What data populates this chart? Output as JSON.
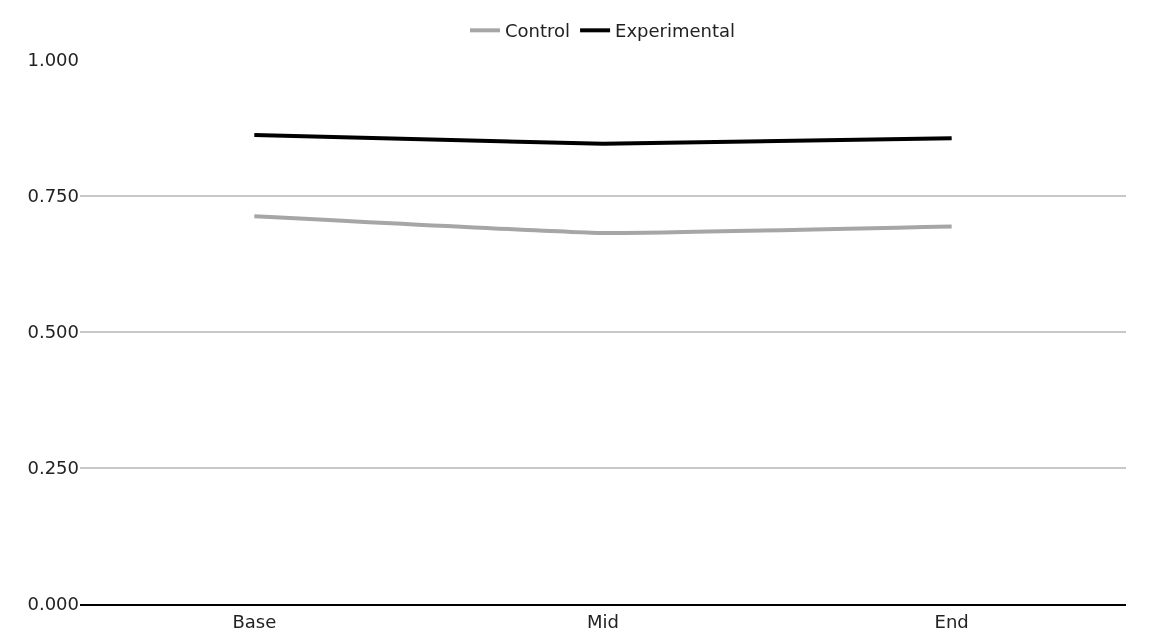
{
  "chart_data": {
    "type": "line",
    "categories": [
      "Base",
      "Mid",
      "End"
    ],
    "series": [
      {
        "name": "Control",
        "color": "#a6a6a6",
        "values": [
          0.713,
          0.682,
          0.694
        ]
      },
      {
        "name": "Experimental",
        "color": "#000000",
        "values": [
          0.862,
          0.846,
          0.856
        ]
      }
    ],
    "ylim": [
      0,
      1
    ],
    "yticks": [
      {
        "value": 0,
        "label": "0.000"
      },
      {
        "value": 0.25,
        "label": "0.250"
      },
      {
        "value": 0.5,
        "label": "0.500"
      },
      {
        "value": 0.75,
        "label": "0.750"
      },
      {
        "value": 1,
        "label": "1.000"
      }
    ],
    "grid": "y",
    "legend": "top",
    "marker": "none",
    "line_style": "solid"
  }
}
